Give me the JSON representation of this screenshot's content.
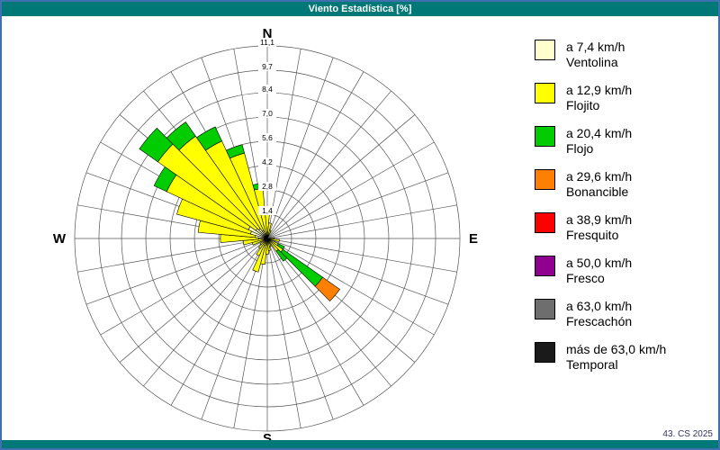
{
  "window": {
    "title": "Viento Estadística [%]"
  },
  "footer": {
    "credit": "43. CS 2025"
  },
  "compass": {
    "n": "N",
    "e": "E",
    "s": "S",
    "w": "W"
  },
  "theme": {
    "titlebar_bg": "#007878",
    "border": "#3e6fae",
    "grid": "#555555"
  },
  "legend": [
    {
      "speed": "a 7,4 km/h",
      "name": "Ventolina",
      "color": "#FFFFCE"
    },
    {
      "speed": "a 12,9 km/h",
      "name": "Flojito",
      "color": "#FFFF00"
    },
    {
      "speed": "a 20,4 km/h",
      "name": "Flojo",
      "color": "#00CC00"
    },
    {
      "speed": "a 29,6 km/h",
      "name": "Bonancible",
      "color": "#FF8000"
    },
    {
      "speed": "a 38,9 km/h",
      "name": "Fresquito",
      "color": "#FF0000"
    },
    {
      "speed": "a 50,0 km/h",
      "name": "Fresco",
      "color": "#900090"
    },
    {
      "speed": "a 63,0 km/h",
      "name": "Frescachón",
      "color": "#6E6E6E"
    },
    {
      "speed": "más de 63,0 km/h",
      "name": "Temporal",
      "color": "#1A1A1A"
    }
  ],
  "chart_data": {
    "type": "wind-rose",
    "title": "Viento Estadística [%]",
    "units": "percent of time",
    "axis_max": 11.1,
    "rings": [
      1.4,
      2.8,
      4.2,
      5.6,
      7.0,
      8.4,
      9.7,
      11.1
    ],
    "ring_labels": [
      "1,4",
      "2,8",
      "4,2",
      "5,6",
      "7,0",
      "8,4",
      "9,7",
      "11,1"
    ],
    "sector_width_deg": 10,
    "direction_convention": "compass degrees, 0 = N, clockwise",
    "series": [
      {
        "name": "Ventolina",
        "speed_label": "a 7,4 km/h",
        "color": "#FFFFCE",
        "values": {
          "190": 0.3,
          "200": 0.4,
          "270": 0.5,
          "280": 0.7,
          "290": 1.0,
          "300": 1.2,
          "310": 0.8,
          "320": 0.7,
          "330": 0.5,
          "340": 0.3
        }
      },
      {
        "name": "Flojito",
        "speed_label": "a 12,9 km/h",
        "color": "#FFFF00",
        "values": {
          "0": 1.7,
          "10": 0.9,
          "20": 0.5,
          "90": 0.4,
          "100": 0.7,
          "120": 0.7,
          "130": 1.1,
          "140": 0.9,
          "160": 0.5,
          "170": 0.7,
          "180": 0.9,
          "190": 1.2,
          "200": 1.6,
          "210": 1.1,
          "220": 0.7,
          "230": 0.5,
          "250": 0.9,
          "260": 1.4,
          "270": 2.2,
          "280": 3.3,
          "290": 4.4,
          "300": 5.2,
          "310": 6.9,
          "320": 6.5,
          "330": 5.7,
          "340": 4.8,
          "350": 2.9
        }
      },
      {
        "name": "Flojo",
        "speed_label": "a 20,4 km/h",
        "color": "#00CC00",
        "values": {
          "120": 0.4,
          "130": 2.8,
          "140": 0.7,
          "300": 0.8,
          "310": 1.3,
          "320": 1.0,
          "330": 0.9,
          "340": 0.5,
          "350": 0.3
        }
      },
      {
        "name": "Bonancible",
        "speed_label": "a 29,6 km/h",
        "color": "#FF8000",
        "values": {
          "130": 1.2
        }
      },
      {
        "name": "Fresquito",
        "speed_label": "a 38,9 km/h",
        "color": "#FF0000",
        "values": {}
      },
      {
        "name": "Fresco",
        "speed_label": "a 50,0 km/h",
        "color": "#900090",
        "values": {}
      },
      {
        "name": "Frescachón",
        "speed_label": "a 63,0 km/h",
        "color": "#6E6E6E",
        "values": {}
      },
      {
        "name": "Temporal",
        "speed_label": "más de 63,0 km/h",
        "color": "#1A1A1A",
        "values": {}
      }
    ]
  }
}
